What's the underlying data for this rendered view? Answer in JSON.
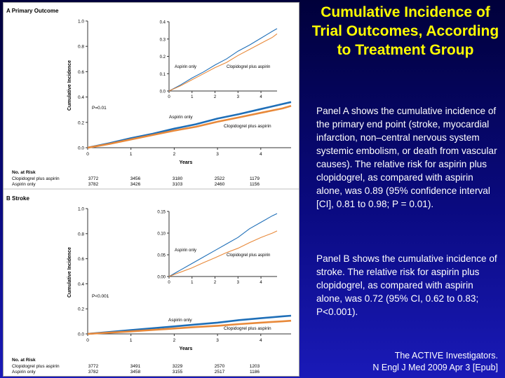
{
  "slide": {
    "title": "Cumulative Incidence of Trial Outcomes, According to Treatment Group",
    "panel_a_text": "Panel A shows the cumulative incidence of the primary end point (stroke, myocardial infarction, non–central nervous system systemic embolism, or death from vascular causes). The relative risk for aspirin plus clopidogrel, as compared with aspirin alone, was 0.89 (95% confidence interval [CI], 0.81 to 0.98; P = 0.01).",
    "panel_b_text": "Panel B shows the cumulative incidence of stroke. The relative risk for aspirin plus clopidogrel, as compared with aspirin alone, was 0.72 (95% CI, 0.62 to 0.83; P<0.001).",
    "citation_line1": "The ACTIVE Investigators.",
    "citation_line2": "N Engl J Med 2009 Apr 3 [Epub]"
  },
  "colors": {
    "aspirin_only": "#1f6fb8",
    "clopidogrel_plus_aspirin": "#e8893a",
    "axis": "#333333"
  },
  "chart_data": [
    {
      "panel": "A",
      "type": "line",
      "title": "A  Primary Outcome",
      "xlabel": "Years",
      "ylabel": "Cumulative Incidence",
      "xlim": [
        0,
        4.7
      ],
      "ylim": [
        0,
        1.0
      ],
      "xticks": [
        "0",
        "1",
        "2",
        "3",
        "4"
      ],
      "yticks": [
        "0.0",
        "0.2",
        "0.4",
        "0.6",
        "0.8",
        "1.0"
      ],
      "p_value": "P=0.01",
      "series": [
        {
          "name": "Aspirin only",
          "x": [
            0,
            0.5,
            1,
            1.5,
            2,
            2.5,
            3,
            3.5,
            4,
            4.5,
            4.7
          ],
          "y": [
            0,
            0.035,
            0.075,
            0.11,
            0.15,
            0.185,
            0.23,
            0.265,
            0.305,
            0.345,
            0.36
          ]
        },
        {
          "name": "Clopidogrel plus aspirin",
          "x": [
            0,
            0.5,
            1,
            1.5,
            2,
            2.5,
            3,
            3.5,
            4,
            4.5,
            4.7
          ],
          "y": [
            0,
            0.03,
            0.065,
            0.1,
            0.135,
            0.165,
            0.205,
            0.24,
            0.275,
            0.31,
            0.33
          ]
        }
      ],
      "inset": {
        "ylim": [
          0,
          0.4
        ],
        "yticks": [
          "0.0",
          "0.1",
          "0.2",
          "0.3",
          "0.4"
        ],
        "xticks": [
          "0",
          "1",
          "2",
          "3",
          "4"
        ]
      },
      "risk_table": {
        "heading": "No. at Risk",
        "rows": [
          {
            "label": "Clopidogrel plus aspirin",
            "values": [
              "3772",
              "3456",
              "3180",
              "2522",
              "1179"
            ]
          },
          {
            "label": "Aspirin only",
            "values": [
              "3782",
              "3426",
              "3103",
              "2460",
              "1156"
            ]
          }
        ]
      }
    },
    {
      "panel": "B",
      "type": "line",
      "title": "B  Stroke",
      "xlabel": "Years",
      "ylabel": "Cumulative Incidence",
      "xlim": [
        0,
        4.7
      ],
      "ylim": [
        0,
        1.0
      ],
      "xticks": [
        "0",
        "1",
        "2",
        "3",
        "4"
      ],
      "yticks": [
        "0.0",
        "0.2",
        "0.4",
        "0.6",
        "0.8",
        "1.0"
      ],
      "p_value": "P<0.001",
      "series": [
        {
          "name": "Aspirin only",
          "x": [
            0,
            0.5,
            1,
            1.5,
            2,
            2.5,
            3,
            3.5,
            4,
            4.5,
            4.7
          ],
          "y": [
            0,
            0.015,
            0.03,
            0.045,
            0.06,
            0.075,
            0.09,
            0.11,
            0.125,
            0.14,
            0.145
          ]
        },
        {
          "name": "Clopidogrel plus aspirin",
          "x": [
            0,
            0.5,
            1,
            1.5,
            2,
            2.5,
            3,
            3.5,
            4,
            4.5,
            4.7
          ],
          "y": [
            0,
            0.01,
            0.02,
            0.032,
            0.043,
            0.055,
            0.065,
            0.078,
            0.09,
            0.1,
            0.105
          ]
        }
      ],
      "inset": {
        "ylim": [
          0,
          0.15
        ],
        "yticks": [
          "0.00",
          "0.05",
          "0.10",
          "0.15"
        ],
        "xticks": [
          "0",
          "1",
          "2",
          "3",
          "4"
        ]
      },
      "risk_table": {
        "heading": "No. at Risk",
        "rows": [
          {
            "label": "Clopidogrel plus aspirin",
            "values": [
              "3772",
              "3491",
              "3229",
              "2570",
              "1203"
            ]
          },
          {
            "label": "Aspirin only",
            "values": [
              "3782",
              "3458",
              "3155",
              "2517",
              "1186"
            ]
          }
        ]
      }
    }
  ]
}
